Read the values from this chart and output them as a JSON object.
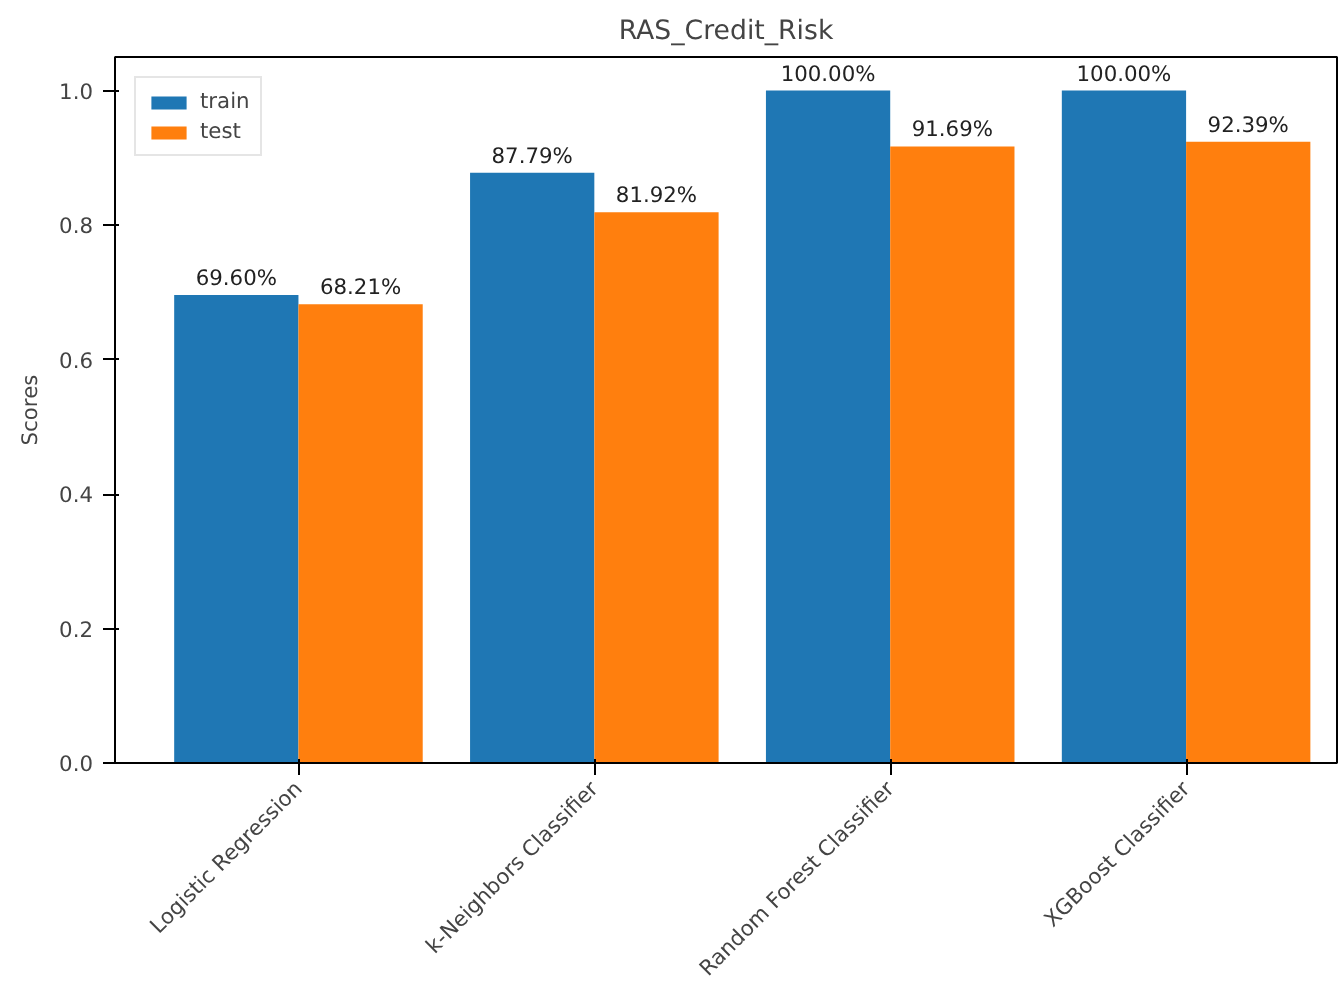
{
  "chart_data": {
    "type": "bar",
    "title": "RAS_Credit_Risk",
    "ylabel": "Scores",
    "categories": [
      "Logistic Regression",
      "k-Neighbors Classifier",
      "Random Forest Classifier",
      "XGBoost Classifier"
    ],
    "series": [
      {
        "name": "train",
        "color": "#1f77b4",
        "values": [
          0.696,
          0.8779,
          1.0,
          1.0
        ],
        "value_labels": [
          "69.60%",
          "87.79%",
          "100.00%",
          "100.00%"
        ]
      },
      {
        "name": "test",
        "color": "#ff7f0e",
        "values": [
          0.6821,
          0.8192,
          0.9169,
          0.9239
        ],
        "value_labels": [
          "68.21%",
          "81.92%",
          "91.69%",
          "92.39%"
        ]
      }
    ],
    "ylim": [
      0,
      1.05
    ],
    "yticks": [
      {
        "value": 0,
        "label": "0.0"
      },
      {
        "value": 0.2,
        "label": "0.2"
      },
      {
        "value": 0.4,
        "label": "0.4"
      },
      {
        "value": 0.6,
        "label": "0.6"
      },
      {
        "value": 0.8,
        "label": "0.8"
      },
      {
        "value": 1.0,
        "label": "1.0"
      }
    ],
    "grid": false,
    "legend": "top left"
  }
}
